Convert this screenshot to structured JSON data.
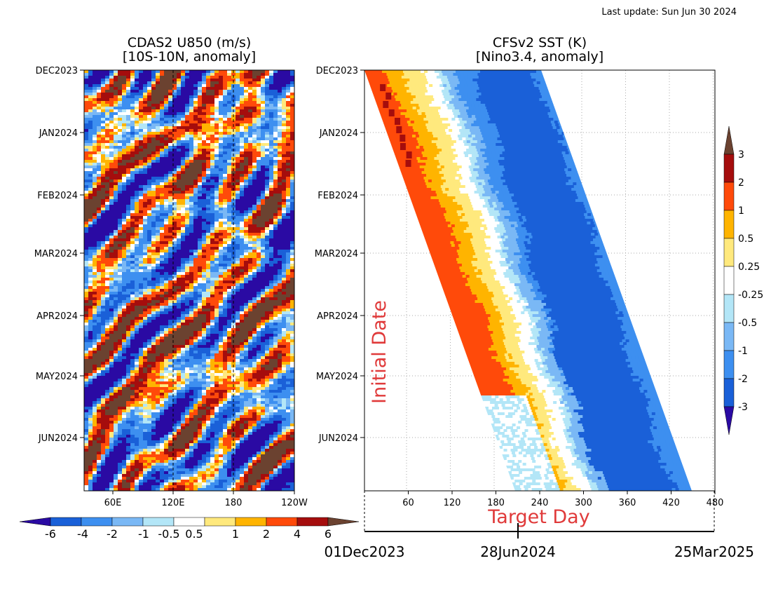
{
  "header": {
    "last_update": "Last update: Sun Jun 30 2024"
  },
  "colors": {
    "levels": [
      "#2a0aa3",
      "#1a60d8",
      "#3d8ff0",
      "#7ab8f5",
      "#b3e6f7",
      "#ffffff",
      "#ffe97d",
      "#ffb400",
      "#ff4a0a",
      "#a50d0d",
      "#6b4230"
    ]
  },
  "chart_data": [
    {
      "type": "heatmap",
      "title": "CDAS2 U850 (m/s)",
      "subtitle": "[10S-10N, anomaly]",
      "x_ticks": [
        "60E",
        "120E",
        "180",
        "120W"
      ],
      "y_ticks": [
        "DEC2023",
        "JAN2024",
        "FEB2024",
        "MAR2024",
        "APR2024",
        "MAY2024",
        "JUN2024"
      ],
      "reference_lines": [
        "120E",
        "180"
      ],
      "colorbar": {
        "levels": [
          "-6",
          "-4",
          "-2",
          "-1",
          "-0.5",
          "0.5",
          "1",
          "2",
          "4",
          "6"
        ],
        "orientation": "horizontal"
      }
    },
    {
      "type": "heatmap",
      "title": "CFSv2 SST (K)",
      "subtitle": "[Nino3.4, anomaly]",
      "x_ticks": [
        "60",
        "120",
        "180",
        "240",
        "300",
        "360",
        "420",
        "480"
      ],
      "xlabel": "Target Day",
      "ylabel": "Initial Date",
      "y_ticks": [
        "DEC2023",
        "JAN2024",
        "FEB2024",
        "MAR2024",
        "APR2024",
        "MAY2024",
        "JUN2024"
      ],
      "date_axis": [
        "01Dec2023",
        "28Jun2024",
        "25Mar2025"
      ],
      "colorbar": {
        "levels": [
          "3",
          "2",
          "1",
          "0.5",
          "0.25",
          "-0.25",
          "-0.5",
          "-1",
          "-2",
          "-3"
        ],
        "orientation": "vertical"
      }
    }
  ]
}
